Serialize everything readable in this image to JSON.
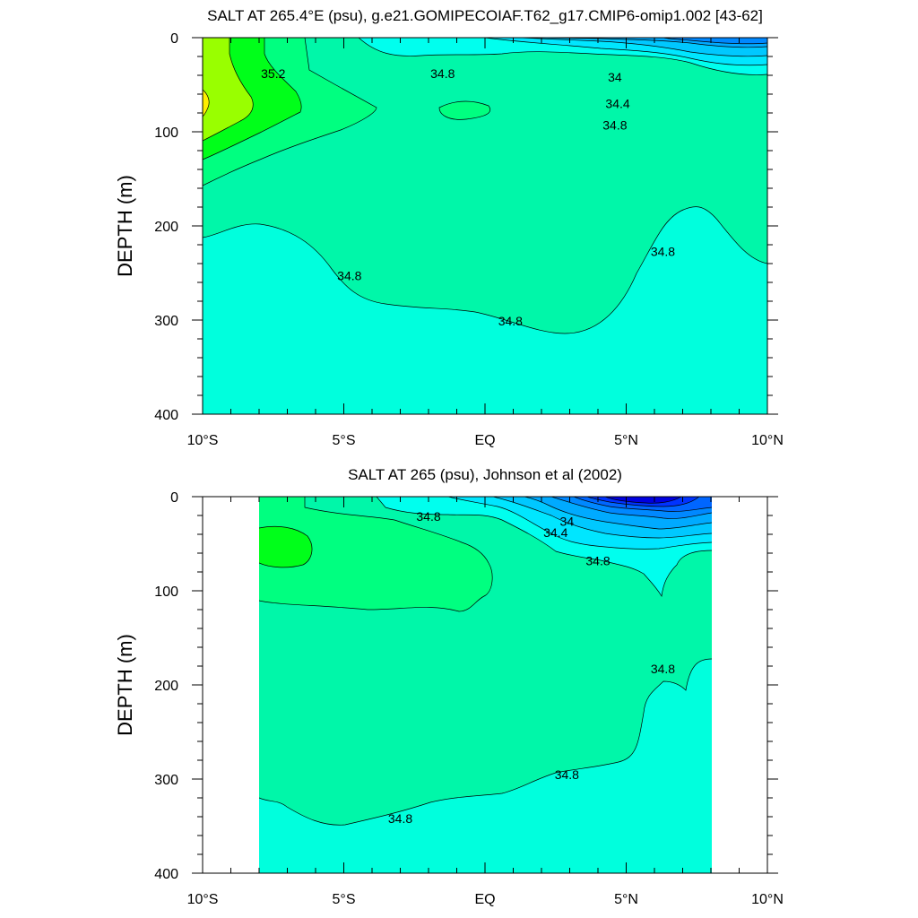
{
  "chart_data": [
    {
      "type": "contour",
      "title": "SALT AT 265.4°E (psu), g.e21.GOMIPECOIAF.T62_g17.CMIP6-omip1.002 [43-62]",
      "ylabel": "DEPTH (m)",
      "xlabel": "",
      "xlim": [
        -10,
        10
      ],
      "ylim": [
        400,
        0
      ],
      "x_tick_labels": [
        "10°S",
        "5°S",
        "EQ",
        "5°N",
        "10°N"
      ],
      "x_tick_values": [
        -10,
        -5,
        0,
        5,
        10
      ],
      "y_tick_labels": [
        "0",
        "100",
        "200",
        "300",
        "400"
      ],
      "y_tick_values": [
        0,
        100,
        200,
        300,
        400
      ],
      "data_xrange": [
        -10,
        10
      ],
      "contour_interval": 0.2,
      "contour_labels": [
        {
          "text": "35.2",
          "lat": -7.5,
          "depth": 38
        },
        {
          "text": "34.8",
          "lat": -1.5,
          "depth": 38
        },
        {
          "text": "34",
          "lat": 4.6,
          "depth": 42
        },
        {
          "text": "34.4",
          "lat": 4.7,
          "depth": 70
        },
        {
          "text": "34.8",
          "lat": 4.6,
          "depth": 93
        },
        {
          "text": "34.8",
          "lat": -4.8,
          "depth": 253
        },
        {
          "text": "34.8",
          "lat": 0.9,
          "depth": 301
        },
        {
          "text": "34.8",
          "lat": 6.3,
          "depth": 227
        }
      ]
    },
    {
      "type": "contour",
      "title": "SALT AT 265 (psu), Johnson et al (2002)",
      "ylabel": "DEPTH (m)",
      "xlabel": "",
      "xlim": [
        -10,
        10
      ],
      "ylim": [
        400,
        0
      ],
      "x_tick_labels": [
        "10°S",
        "5°S",
        "EQ",
        "5°N",
        "10°N"
      ],
      "x_tick_values": [
        -10,
        -5,
        0,
        5,
        10
      ],
      "y_tick_labels": [
        "0",
        "100",
        "200",
        "300",
        "400"
      ],
      "y_tick_values": [
        0,
        100,
        200,
        300,
        400
      ],
      "data_xrange": [
        -8,
        8
      ],
      "contour_interval": 0.2,
      "contour_labels": [
        {
          "text": "34.8",
          "lat": -2,
          "depth": 21
        },
        {
          "text": "34",
          "lat": 2.9,
          "depth": 26
        },
        {
          "text": "34.4",
          "lat": 2.5,
          "depth": 38
        },
        {
          "text": "34.8",
          "lat": 4.0,
          "depth": 68
        },
        {
          "text": "34.8",
          "lat": 6.3,
          "depth": 183
        },
        {
          "text": "34.8",
          "lat": 2.9,
          "depth": 295
        },
        {
          "text": "34.8",
          "lat": -3.0,
          "depth": 342
        }
      ]
    }
  ]
}
